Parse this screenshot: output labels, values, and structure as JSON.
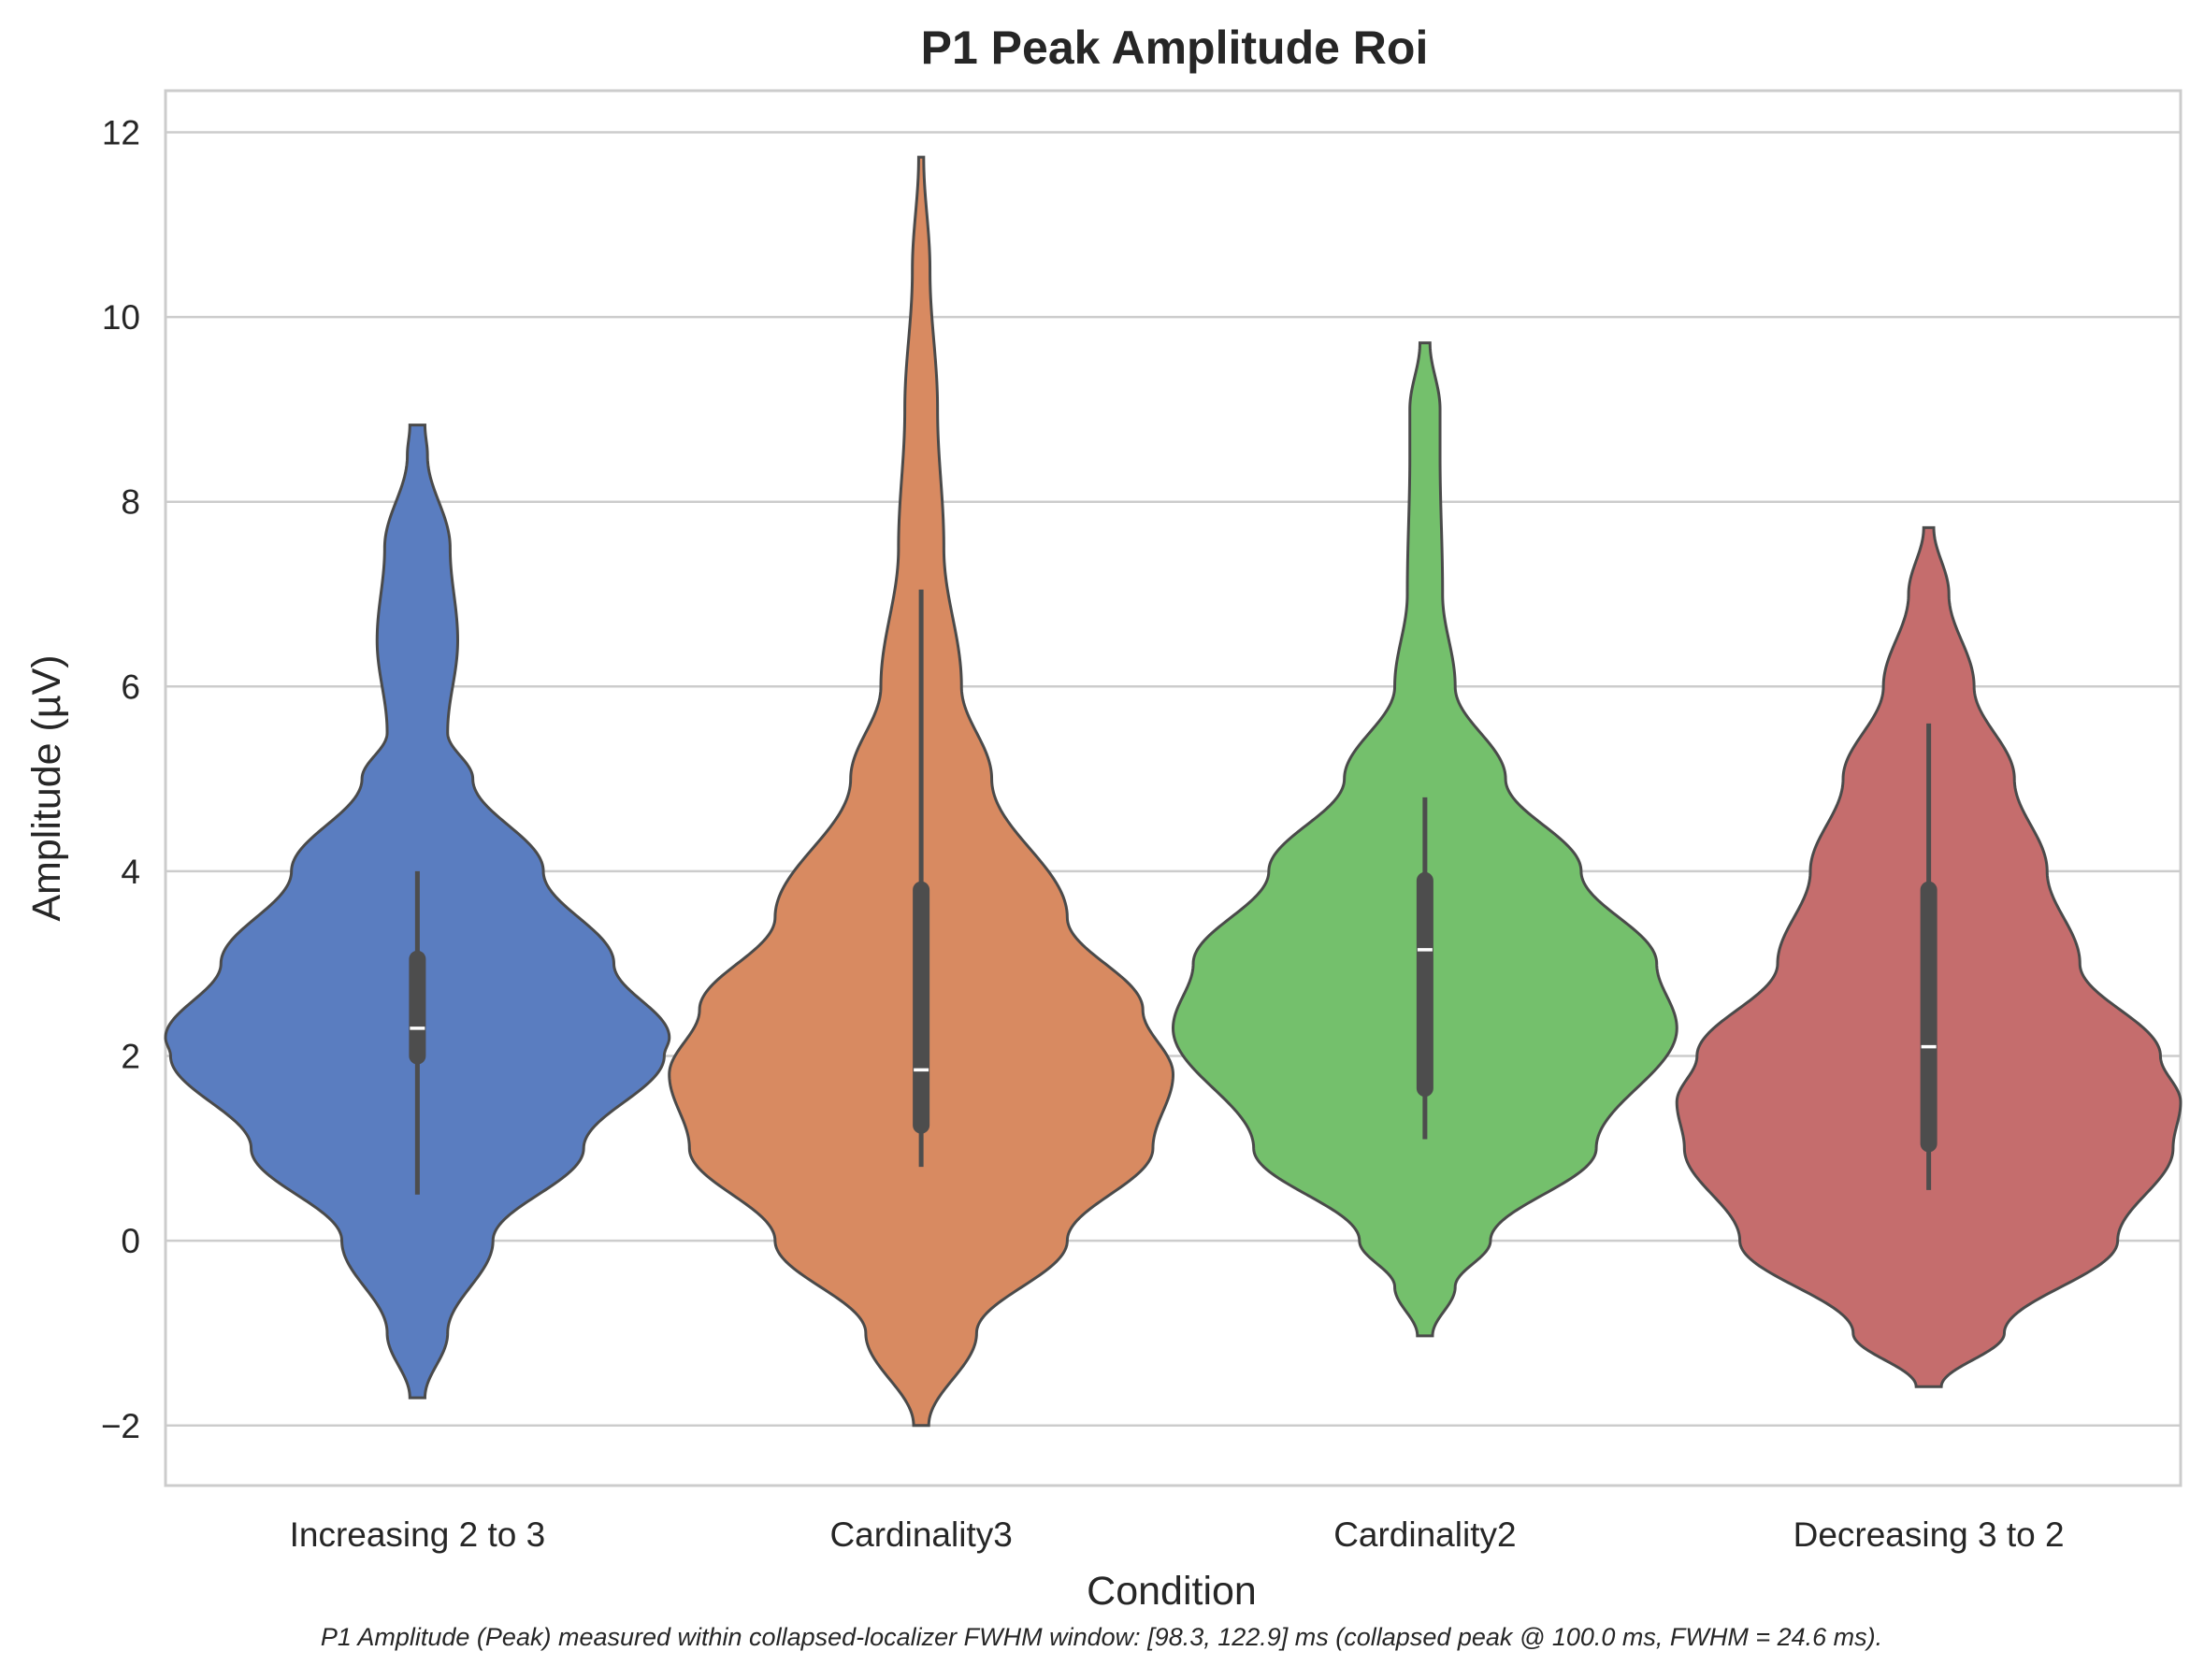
{
  "chart_data": {
    "type": "violin",
    "title": "P1 Peak Amplitude Roi",
    "xlabel": "Condition",
    "ylabel": "Amplitude (µV)",
    "ylim": [
      -2.65,
      12.45
    ],
    "yticks": [
      -2,
      0,
      2,
      4,
      6,
      8,
      10,
      12
    ],
    "ytick_labels": [
      "−2",
      "0",
      "2",
      "4",
      "6",
      "8",
      "10",
      "12"
    ],
    "grid": true,
    "footnote": "P1 Amplitude (Peak) measured within collapsed-localizer FWHM window: [98.3, 122.9] ms (collapsed peak @ 100.0 ms, FWHM = 24.6 ms).",
    "categories": [
      "Increasing 2 to 3",
      "Cardinality3",
      "Cardinality2",
      "Decreasing 3 to 2"
    ],
    "series": [
      {
        "category": "Increasing 2 to 3",
        "color": "#5a7dc0",
        "min": 0.5,
        "q1": 2.0,
        "median": 2.3,
        "q3": 3.05,
        "max": 4.0,
        "density": [
          [
            -1.7,
            0.03
          ],
          [
            -1.0,
            0.12
          ],
          [
            0,
            0.3
          ],
          [
            1.0,
            0.66
          ],
          [
            2.0,
            0.98
          ],
          [
            2.2,
            1.0
          ],
          [
            3.0,
            0.78
          ],
          [
            4.0,
            0.5
          ],
          [
            5.0,
            0.22
          ],
          [
            5.5,
            0.12
          ],
          [
            6.5,
            0.16
          ],
          [
            7.5,
            0.13
          ],
          [
            8.5,
            0.04
          ],
          [
            8.83,
            0.03
          ]
        ]
      },
      {
        "category": "Cardinality3",
        "color": "#d88a61",
        "min": 0.8,
        "q1": 1.25,
        "median": 1.85,
        "q3": 3.8,
        "max": 7.05,
        "density": [
          [
            -2.0,
            0.03
          ],
          [
            -1.0,
            0.22
          ],
          [
            0,
            0.58
          ],
          [
            1.0,
            0.92
          ],
          [
            1.8,
            1.0
          ],
          [
            2.5,
            0.88
          ],
          [
            3.5,
            0.58
          ],
          [
            5.0,
            0.28
          ],
          [
            6.0,
            0.16
          ],
          [
            7.5,
            0.09
          ],
          [
            9.0,
            0.065
          ],
          [
            10.5,
            0.035
          ],
          [
            11.73,
            0.01
          ]
        ]
      },
      {
        "category": "Cardinality2",
        "color": "#74c06c",
        "min": 1.1,
        "q1": 1.65,
        "median": 3.15,
        "q3": 3.9,
        "max": 4.8,
        "density": [
          [
            -1.03,
            0.03
          ],
          [
            -0.5,
            0.12
          ],
          [
            0,
            0.26
          ],
          [
            1.0,
            0.68
          ],
          [
            2.3,
            1.0
          ],
          [
            3.0,
            0.92
          ],
          [
            4.0,
            0.62
          ],
          [
            5.0,
            0.32
          ],
          [
            6.0,
            0.12
          ],
          [
            7.0,
            0.07
          ],
          [
            8.5,
            0.06
          ],
          [
            9.0,
            0.06
          ],
          [
            9.72,
            0.02
          ]
        ]
      },
      {
        "category": "Decreasing 3 to 2",
        "color": "#c56d6d",
        "min": 0.55,
        "q1": 1.05,
        "median": 2.1,
        "q3": 3.8,
        "max": 5.6,
        "density": [
          [
            -1.58,
            0.05
          ],
          [
            -1.0,
            0.3
          ],
          [
            0,
            0.75
          ],
          [
            1.0,
            0.97
          ],
          [
            1.5,
            1.0
          ],
          [
            2.0,
            0.92
          ],
          [
            3.0,
            0.6
          ],
          [
            4.0,
            0.47
          ],
          [
            5.0,
            0.34
          ],
          [
            6.0,
            0.18
          ],
          [
            7.0,
            0.08
          ],
          [
            7.72,
            0.02
          ]
        ]
      }
    ]
  }
}
